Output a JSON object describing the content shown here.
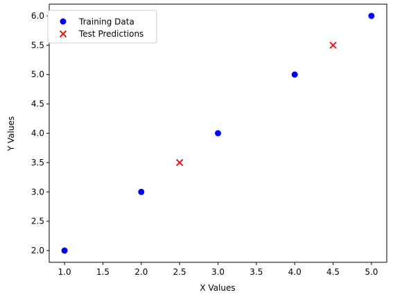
{
  "chart_data": {
    "type": "scatter",
    "title": "",
    "xlabel": "X Values",
    "ylabel": "Y Values",
    "xlim": [
      0.8,
      5.2
    ],
    "ylim": [
      1.8,
      6.2
    ],
    "xticks": [
      "1.0",
      "1.5",
      "2.0",
      "2.5",
      "3.0",
      "3.5",
      "4.0",
      "4.5",
      "5.0"
    ],
    "yticks": [
      "2.0",
      "2.5",
      "3.0",
      "3.5",
      "4.0",
      "4.5",
      "5.0",
      "5.5",
      "6.0"
    ],
    "grid": false,
    "legend_position": "top-left",
    "series": [
      {
        "name": "Training Data",
        "marker": "circle",
        "color": "#0000ff",
        "x": [
          1,
          2,
          3,
          4,
          5
        ],
        "y": [
          2,
          3,
          4,
          5,
          6
        ]
      },
      {
        "name": "Test Predictions",
        "marker": "x",
        "color": "#e41a1c",
        "x": [
          2.5,
          4.5
        ],
        "y": [
          3.5,
          5.5
        ]
      }
    ]
  }
}
